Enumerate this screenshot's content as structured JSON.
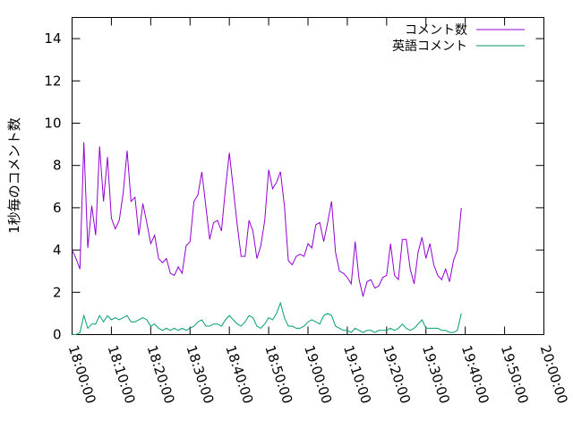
{
  "chart_data": {
    "type": "line",
    "title": "",
    "xlabel": "",
    "ylabel": "1秒毎のコメント数",
    "xlim": [
      "18:00:00",
      "20:00:00"
    ],
    "ylim": [
      0,
      15
    ],
    "xticks": [
      "18:00:00",
      "18:10:00",
      "18:20:00",
      "18:30:00",
      "18:40:00",
      "18:50:00",
      "19:00:00",
      "19:10:00",
      "19:20:00",
      "19:30:00",
      "19:40:00",
      "19:50:00",
      "20:00:00"
    ],
    "yticks": [
      0,
      2,
      4,
      6,
      8,
      10,
      12,
      14
    ],
    "legend_position": "top-right",
    "grid": false,
    "series": [
      {
        "name": "コメント数",
        "color": "#9400d3",
        "points": [
          [
            "18:00:00",
            4.0
          ],
          [
            "18:01:00",
            3.6
          ],
          [
            "18:02:00",
            3.1
          ],
          [
            "18:03:00",
            9.1
          ],
          [
            "18:04:00",
            4.1
          ],
          [
            "18:05:00",
            6.1
          ],
          [
            "18:06:00",
            4.7
          ],
          [
            "18:07:00",
            8.9
          ],
          [
            "18:08:00",
            6.3
          ],
          [
            "18:09:00",
            8.4
          ],
          [
            "18:10:00",
            5.5
          ],
          [
            "18:11:00",
            5.0
          ],
          [
            "18:12:00",
            5.4
          ],
          [
            "18:13:00",
            6.7
          ],
          [
            "18:14:00",
            8.7
          ],
          [
            "18:15:00",
            6.3
          ],
          [
            "18:16:00",
            6.5
          ],
          [
            "18:17:00",
            4.7
          ],
          [
            "18:18:00",
            6.2
          ],
          [
            "18:19:00",
            5.3
          ],
          [
            "18:20:00",
            4.3
          ],
          [
            "18:21:00",
            4.7
          ],
          [
            "18:22:00",
            3.6
          ],
          [
            "18:23:00",
            3.4
          ],
          [
            "18:24:00",
            3.6
          ],
          [
            "18:25:00",
            2.9
          ],
          [
            "18:26:00",
            2.8
          ],
          [
            "18:27:00",
            3.2
          ],
          [
            "18:28:00",
            2.9
          ],
          [
            "18:29:00",
            4.2
          ],
          [
            "18:30:00",
            4.4
          ],
          [
            "18:31:00",
            6.3
          ],
          [
            "18:32:00",
            6.6
          ],
          [
            "18:33:00",
            7.7
          ],
          [
            "18:34:00",
            6.1
          ],
          [
            "18:35:00",
            4.5
          ],
          [
            "18:36:00",
            5.3
          ],
          [
            "18:37:00",
            5.4
          ],
          [
            "18:38:00",
            4.9
          ],
          [
            "18:39:00",
            6.9
          ],
          [
            "18:40:00",
            8.6
          ],
          [
            "18:41:00",
            6.9
          ],
          [
            "18:42:00",
            5.2
          ],
          [
            "18:43:00",
            3.7
          ],
          [
            "18:44:00",
            3.7
          ],
          [
            "18:45:00",
            5.4
          ],
          [
            "18:46:00",
            4.9
          ],
          [
            "18:47:00",
            3.6
          ],
          [
            "18:48:00",
            4.2
          ],
          [
            "18:49:00",
            5.4
          ],
          [
            "18:50:00",
            7.8
          ],
          [
            "18:51:00",
            6.9
          ],
          [
            "18:52:00",
            7.2
          ],
          [
            "18:53:00",
            7.7
          ],
          [
            "18:54:00",
            6.1
          ],
          [
            "18:55:00",
            3.5
          ],
          [
            "18:56:00",
            3.3
          ],
          [
            "18:57:00",
            3.7
          ],
          [
            "18:58:00",
            3.8
          ],
          [
            "18:59:00",
            3.7
          ],
          [
            "19:00:00",
            4.3
          ],
          [
            "19:01:00",
            4.1
          ],
          [
            "19:02:00",
            5.2
          ],
          [
            "19:03:00",
            5.3
          ],
          [
            "19:04:00",
            4.4
          ],
          [
            "19:05:00",
            5.3
          ],
          [
            "19:06:00",
            6.3
          ],
          [
            "19:07:00",
            3.9
          ],
          [
            "19:08:00",
            3.0
          ],
          [
            "19:09:00",
            2.9
          ],
          [
            "19:10:00",
            2.7
          ],
          [
            "19:11:00",
            2.4
          ],
          [
            "19:12:00",
            4.4
          ],
          [
            "19:13:00",
            2.6
          ],
          [
            "19:14:00",
            1.8
          ],
          [
            "19:15:00",
            2.5
          ],
          [
            "19:16:00",
            2.6
          ],
          [
            "19:17:00",
            2.2
          ],
          [
            "19:18:00",
            2.3
          ],
          [
            "19:19:00",
            2.7
          ],
          [
            "19:20:00",
            2.8
          ],
          [
            "19:21:00",
            4.3
          ],
          [
            "19:22:00",
            2.8
          ],
          [
            "19:23:00",
            2.6
          ],
          [
            "19:24:00",
            4.5
          ],
          [
            "19:25:00",
            4.5
          ],
          [
            "19:26:00",
            3.1
          ],
          [
            "19:27:00",
            2.4
          ],
          [
            "19:28:00",
            3.9
          ],
          [
            "19:29:00",
            4.6
          ],
          [
            "19:30:00",
            3.6
          ],
          [
            "19:31:00",
            4.3
          ],
          [
            "19:32:00",
            3.3
          ],
          [
            "19:33:00",
            2.8
          ],
          [
            "19:34:00",
            2.6
          ],
          [
            "19:35:00",
            3.1
          ],
          [
            "19:36:00",
            2.5
          ],
          [
            "19:37:00",
            3.5
          ],
          [
            "19:38:00",
            4.0
          ],
          [
            "19:39:00",
            6.0
          ]
        ]
      },
      {
        "name": "英語コメント",
        "color": "#009e73",
        "points": [
          [
            "18:00:00",
            0.0
          ],
          [
            "18:01:00",
            0.0
          ],
          [
            "18:02:00",
            0.1
          ],
          [
            "18:03:00",
            0.9
          ],
          [
            "18:04:00",
            0.3
          ],
          [
            "18:05:00",
            0.5
          ],
          [
            "18:06:00",
            0.5
          ],
          [
            "18:07:00",
            0.9
          ],
          [
            "18:08:00",
            0.6
          ],
          [
            "18:09:00",
            0.9
          ],
          [
            "18:10:00",
            0.7
          ],
          [
            "18:11:00",
            0.8
          ],
          [
            "18:12:00",
            0.7
          ],
          [
            "18:13:00",
            0.8
          ],
          [
            "18:14:00",
            0.9
          ],
          [
            "18:15:00",
            0.6
          ],
          [
            "18:16:00",
            0.6
          ],
          [
            "18:17:00",
            0.7
          ],
          [
            "18:18:00",
            0.8
          ],
          [
            "18:19:00",
            0.7
          ],
          [
            "18:20:00",
            0.4
          ],
          [
            "18:21:00",
            0.5
          ],
          [
            "18:22:00",
            0.3
          ],
          [
            "18:23:00",
            0.2
          ],
          [
            "18:24:00",
            0.3
          ],
          [
            "18:25:00",
            0.2
          ],
          [
            "18:26:00",
            0.3
          ],
          [
            "18:27:00",
            0.2
          ],
          [
            "18:28:00",
            0.3
          ],
          [
            "18:29:00",
            0.2
          ],
          [
            "18:30:00",
            0.3
          ],
          [
            "18:31:00",
            0.4
          ],
          [
            "18:32:00",
            0.6
          ],
          [
            "18:33:00",
            0.7
          ],
          [
            "18:34:00",
            0.4
          ],
          [
            "18:35:00",
            0.4
          ],
          [
            "18:36:00",
            0.5
          ],
          [
            "18:37:00",
            0.5
          ],
          [
            "18:38:00",
            0.4
          ],
          [
            "18:39:00",
            0.7
          ],
          [
            "18:40:00",
            0.9
          ],
          [
            "18:41:00",
            0.7
          ],
          [
            "18:42:00",
            0.5
          ],
          [
            "18:43:00",
            0.4
          ],
          [
            "18:44:00",
            0.6
          ],
          [
            "18:45:00",
            0.9
          ],
          [
            "18:46:00",
            0.8
          ],
          [
            "18:47:00",
            0.4
          ],
          [
            "18:48:00",
            0.3
          ],
          [
            "18:49:00",
            0.5
          ],
          [
            "18:50:00",
            0.8
          ],
          [
            "18:51:00",
            0.7
          ],
          [
            "18:52:00",
            1.0
          ],
          [
            "18:53:00",
            1.5
          ],
          [
            "18:54:00",
            0.8
          ],
          [
            "18:55:00",
            0.4
          ],
          [
            "18:56:00",
            0.4
          ],
          [
            "18:57:00",
            0.3
          ],
          [
            "18:58:00",
            0.3
          ],
          [
            "18:59:00",
            0.4
          ],
          [
            "19:00:00",
            0.6
          ],
          [
            "19:01:00",
            0.7
          ],
          [
            "19:02:00",
            0.6
          ],
          [
            "19:03:00",
            0.5
          ],
          [
            "19:04:00",
            0.9
          ],
          [
            "19:05:00",
            1.0
          ],
          [
            "19:06:00",
            0.9
          ],
          [
            "19:07:00",
            0.4
          ],
          [
            "19:08:00",
            0.3
          ],
          [
            "19:09:00",
            0.2
          ],
          [
            "19:10:00",
            0.2
          ],
          [
            "19:11:00",
            0.1
          ],
          [
            "19:12:00",
            0.3
          ],
          [
            "19:13:00",
            0.2
          ],
          [
            "19:14:00",
            0.1
          ],
          [
            "19:15:00",
            0.2
          ],
          [
            "19:16:00",
            0.2
          ],
          [
            "19:17:00",
            0.1
          ],
          [
            "19:18:00",
            0.2
          ],
          [
            "19:19:00",
            0.2
          ],
          [
            "19:20:00",
            0.2
          ],
          [
            "19:21:00",
            0.3
          ],
          [
            "19:22:00",
            0.2
          ],
          [
            "19:23:00",
            0.3
          ],
          [
            "19:24:00",
            0.5
          ],
          [
            "19:25:00",
            0.3
          ],
          [
            "19:26:00",
            0.2
          ],
          [
            "19:27:00",
            0.3
          ],
          [
            "19:28:00",
            0.5
          ],
          [
            "19:29:00",
            0.7
          ],
          [
            "19:30:00",
            0.3
          ],
          [
            "19:31:00",
            0.3
          ],
          [
            "19:32:00",
            0.3
          ],
          [
            "19:33:00",
            0.3
          ],
          [
            "19:34:00",
            0.2
          ],
          [
            "19:35:00",
            0.2
          ],
          [
            "19:36:00",
            0.1
          ],
          [
            "19:37:00",
            0.1
          ],
          [
            "19:38:00",
            0.2
          ],
          [
            "19:39:00",
            1.0
          ]
        ]
      }
    ]
  }
}
